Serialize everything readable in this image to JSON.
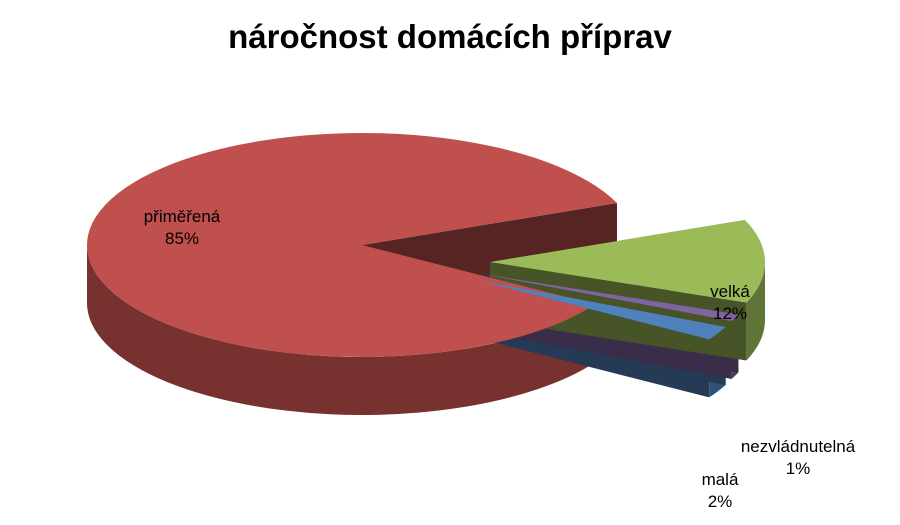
{
  "chart_data": {
    "type": "pie",
    "title": "náročnost domácích příprav",
    "slices": [
      {
        "label": "přiměřená",
        "value": 85,
        "pct_label": "85%",
        "color": "#C0504D"
      },
      {
        "label": "velká",
        "value": 12,
        "pct_label": "12%",
        "color": "#9BBB59"
      },
      {
        "label": "nezvládnutelná",
        "value": 1,
        "pct_label": "1%",
        "color": "#8064A2"
      },
      {
        "label": "malá",
        "value": 2,
        "pct_label": "2%",
        "color": "#4F81BD"
      }
    ],
    "legend": "none",
    "style": "3d-exploded"
  }
}
